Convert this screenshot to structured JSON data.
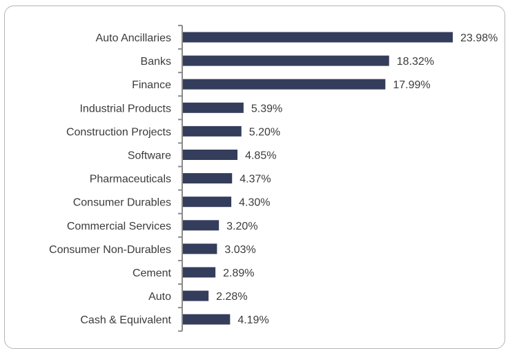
{
  "chart_data": {
    "type": "bar",
    "orientation": "horizontal",
    "title": "",
    "xlabel": "",
    "ylabel": "",
    "categories": [
      "Auto Ancillaries",
      "Banks",
      "Finance",
      "Industrial Products",
      "Construction Projects",
      "Software",
      "Pharmaceuticals",
      "Consumer Durables",
      "Commercial Services",
      "Consumer Non-Durables",
      "Cement",
      "Auto",
      "Cash & Equivalent"
    ],
    "values": [
      23.98,
      18.32,
      17.99,
      5.39,
      5.2,
      4.85,
      4.37,
      4.3,
      3.2,
      3.03,
      2.89,
      2.28,
      4.19
    ],
    "data_labels": [
      "23.98%",
      "18.32%",
      "17.99%",
      "5.39%",
      "5.20%",
      "4.85%",
      "4.37%",
      "4.30%",
      "3.20%",
      "3.03%",
      "2.89%",
      "2.28%",
      "4.19%"
    ],
    "xlim": [
      0,
      24
    ],
    "grid": false,
    "legend": "none",
    "bar_color": "#353d5c"
  }
}
